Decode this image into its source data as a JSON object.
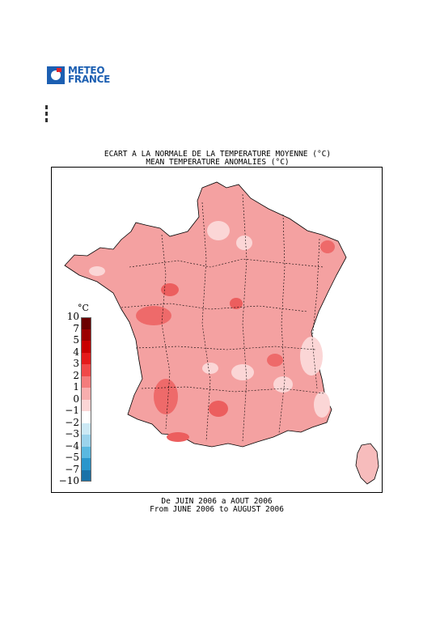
{
  "logo": {
    "line1": "METEO",
    "line2": "FRANCE"
  },
  "map": {
    "title_fr": "ECART A LA NORMALE DE LA TEMPERATURE MOYENNE (°C)",
    "title_en": "MEAN TEMPERATURE ANOMALIES (°C)",
    "period_fr": "De JUIN 2006 a AOUT 2006",
    "period_en": "From JUNE 2006 to AUGUST 2006",
    "unit": "°C"
  },
  "legend": {
    "labels": [
      "10",
      "7",
      "5",
      "4",
      "3",
      "2",
      "1",
      "0",
      "−1",
      "−2",
      "−3",
      "−4",
      "−5",
      "−7",
      "−10"
    ],
    "colors": [
      "#6b0000",
      "#9c0000",
      "#c80000",
      "#e41a1a",
      "#f04848",
      "#f47c7c",
      "#f8aeae",
      "#fbd6d6",
      "#ffffff",
      "#cce9f5",
      "#9bd3ec",
      "#5ab8e0",
      "#2a96cc",
      "#1a72a8",
      "#0e4f7a"
    ]
  }
}
